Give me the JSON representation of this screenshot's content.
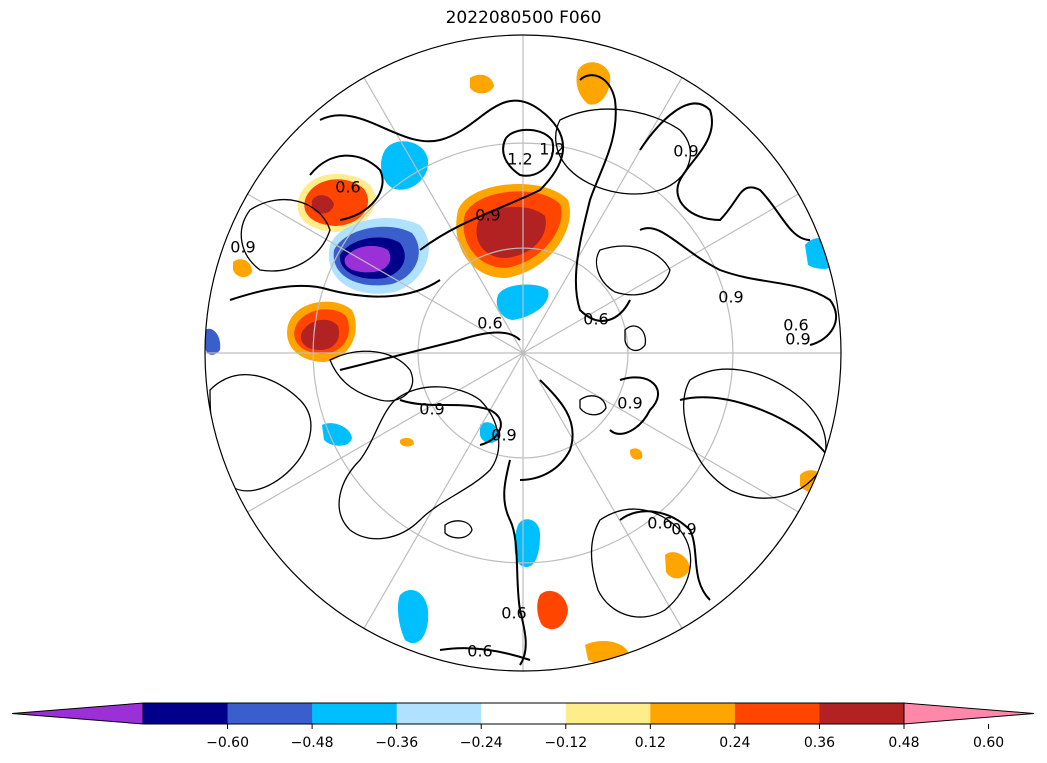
{
  "title": "2022080500 F060",
  "projection": "north-polar-stereographic",
  "colorbar": {
    "orientation": "horizontal",
    "extend": "both",
    "tick_labels": [
      "−0.60",
      "−0.48",
      "−0.36",
      "−0.24",
      "−0.12",
      "0.12",
      "0.24",
      "0.36",
      "0.48",
      "0.60"
    ],
    "colors": [
      "#9b30d9",
      "#00008b",
      "#3a5fcd",
      "#00bfff",
      "#b0e2ff",
      "#ffffff",
      "#ffec8b",
      "#ffa500",
      "#ff4500",
      "#b22222",
      "#ff88aa"
    ]
  },
  "contour_labels": [
    "0.6",
    "0.9",
    "1.2"
  ],
  "map_labels": [
    {
      "text": "0.6",
      "style": "contour"
    },
    {
      "text": "0.9",
      "style": "contour"
    },
    {
      "text": "0.9",
      "style": "contour"
    },
    {
      "text": "0.9",
      "style": "contour"
    },
    {
      "text": "0.9",
      "style": "contour"
    },
    {
      "text": "0.6",
      "style": "contour"
    },
    {
      "text": "0.6",
      "style": "contour"
    },
    {
      "text": "0.9",
      "style": "contour"
    },
    {
      "text": "0.9",
      "style": "contour"
    },
    {
      "text": "0.9",
      "style": "contour"
    },
    {
      "text": "0.6",
      "style": "contour"
    },
    {
      "text": "0.6",
      "style": "contour"
    },
    {
      "text": "0.6",
      "style": "contour"
    },
    {
      "text": "1.2",
      "style": "contour"
    },
    {
      "text": "1.2",
      "style": "contour"
    },
    {
      "text": "0.9",
      "style": "contour"
    },
    {
      "text": "0.6",
      "style": "contour"
    },
    {
      "text": "0.9",
      "style": "contour"
    }
  ]
}
